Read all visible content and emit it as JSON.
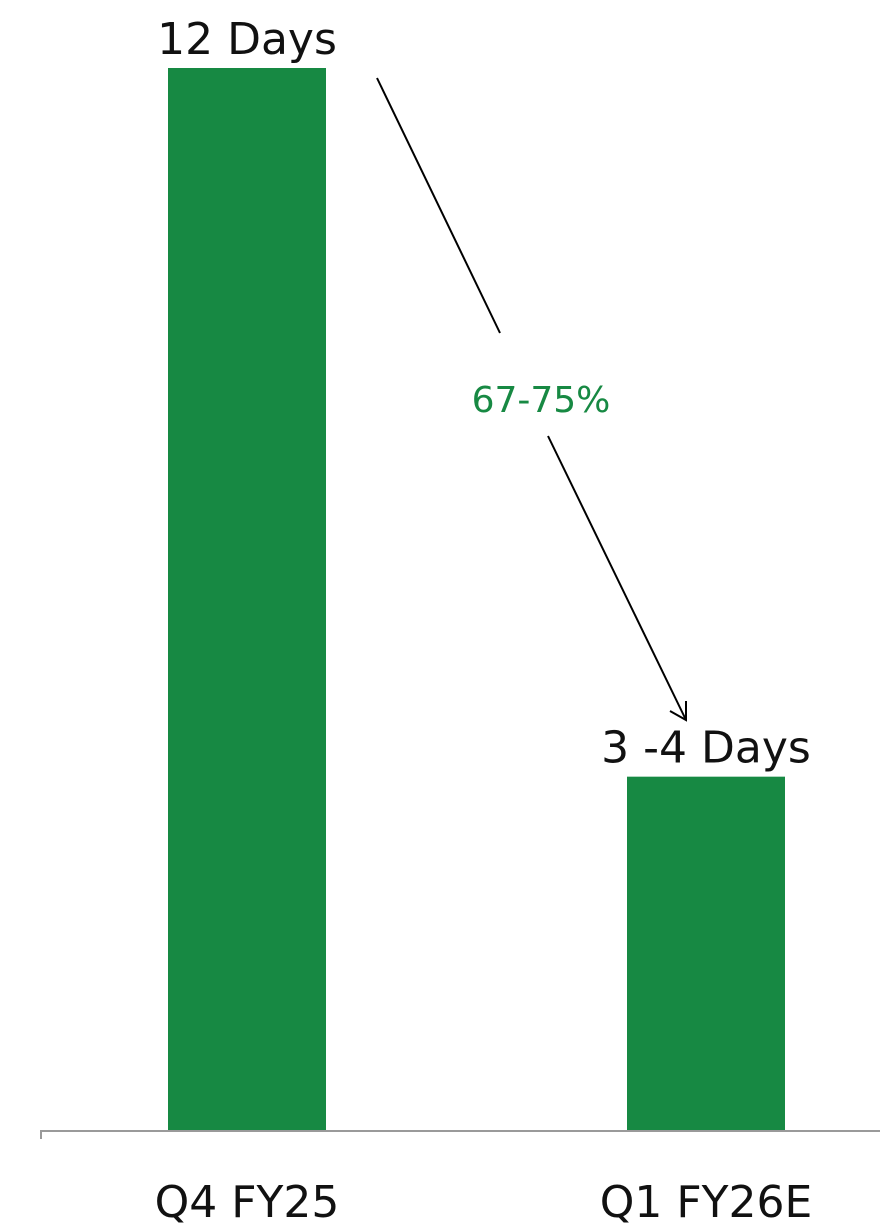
{
  "chart_data": {
    "type": "bar",
    "categories": [
      "Q4 FY25",
      "Q1 FY26E"
    ],
    "values": [
      12,
      3.5
    ],
    "value_ranges": [
      [
        12,
        12
      ],
      [
        3,
        4
      ]
    ],
    "data_labels": [
      "12 Days",
      "3 -4 Days"
    ],
    "ylim": [
      0,
      12
    ],
    "grid": false,
    "bar_color": "#178943",
    "annotation": {
      "text": "67-75%",
      "color": "#178943",
      "from_category": "Q4 FY25",
      "to_category": "Q1 FY26E"
    }
  }
}
